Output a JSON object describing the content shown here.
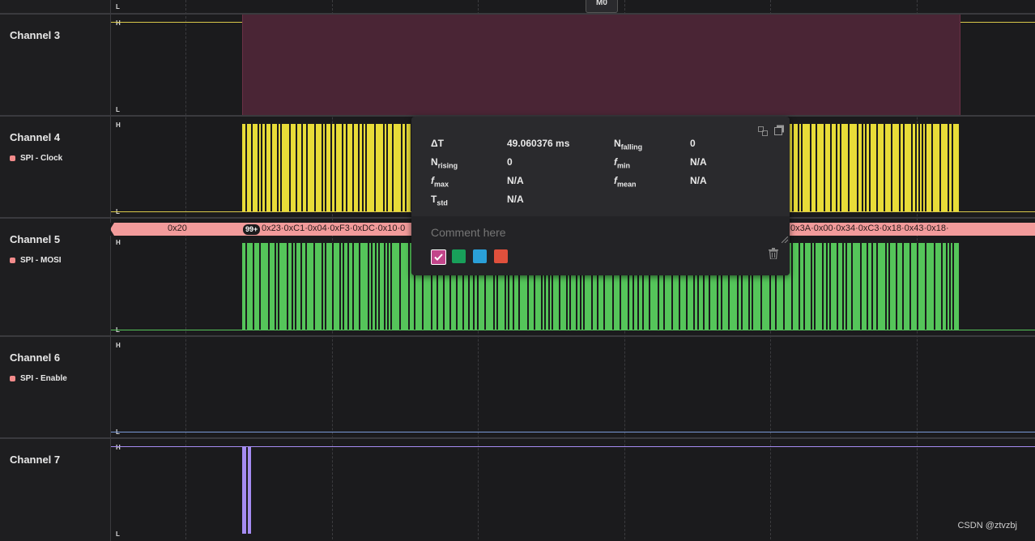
{
  "top_label_L": "L",
  "marker_label": "M0",
  "channels": [
    {
      "name": "Channel 3",
      "sub": "",
      "h": "H",
      "l": "L",
      "color": "#e8e25a"
    },
    {
      "name": "Channel 4",
      "sub": "SPI - Clock",
      "h": "H",
      "l": "L",
      "color": "#e8dc38"
    },
    {
      "name": "Channel 5",
      "sub": "SPI - MOSI",
      "h": "H",
      "l": "L",
      "color": "#55c55a"
    },
    {
      "name": "Channel 6",
      "sub": "SPI - Enable",
      "h": "H",
      "l": "L",
      "color": "#7a9ad8"
    },
    {
      "name": "Channel 7",
      "sub": "",
      "h": "H",
      "l": "L",
      "color": "#a58cf2"
    }
  ],
  "decode": {
    "first": "0x20",
    "badge": "99+",
    "middle": "0x23·0xC1·0x04·0xF3·0xDC·0x10·0",
    "right": "0x3A·0x00·0x34·0xC3·0x18·0x43·0x18·"
  },
  "measurement": {
    "delta_t_label": "ΔT",
    "delta_t_value": "49.060376 ms",
    "n_falling_label": "N",
    "n_falling_sub": "falling",
    "n_falling_value": "0",
    "n_rising_label": "N",
    "n_rising_sub": "rising",
    "n_rising_value": "0",
    "f_min_label": "f",
    "f_min_sub": "min",
    "f_min_value": "N/A",
    "f_max_label": "f",
    "f_max_sub": "max",
    "f_max_value": "N/A",
    "f_mean_label": "f",
    "f_mean_sub": "mean",
    "f_mean_value": "N/A",
    "t_std_label": "T",
    "t_std_sub": "std",
    "t_std_value": "N/A",
    "comment_placeholder": "Comment here",
    "swatch_colors": [
      "#c2458a",
      "#18a05a",
      "#2a9fd8",
      "#e0503c"
    ]
  },
  "watermark": "CSDN @ztvzbj"
}
